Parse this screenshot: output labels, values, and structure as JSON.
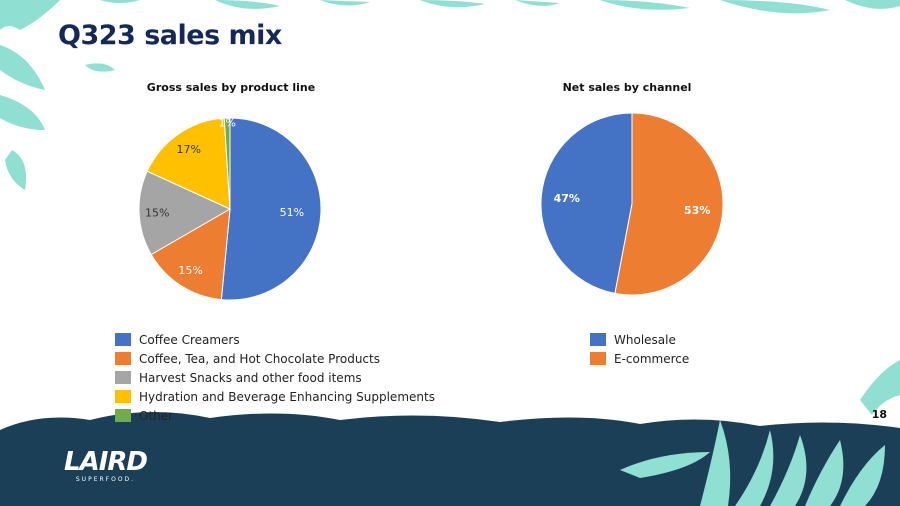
{
  "slide": {
    "title": "Q323 sales mix",
    "page_number": "18"
  },
  "brand": {
    "name": "LAIRD",
    "tagline": "SUPERFOOD."
  },
  "colors": {
    "title": "#14285a",
    "blue": "#4472c4",
    "orange": "#ed7d31",
    "gray": "#a5a5a5",
    "yellow": "#ffc000",
    "green": "#70ad47",
    "navy_band": "#1c3f58",
    "leaf": "#8fe0d2"
  },
  "chart_data": [
    {
      "type": "pie",
      "title": "Gross sales by product line",
      "slices": [
        {
          "label": "Coffee Creamers",
          "value": 51,
          "display": "51%",
          "color": "#4472c4",
          "label_color": "#ffffff"
        },
        {
          "label": "Coffee, Tea, and Hot Chocolate Products",
          "value": 15,
          "display": "15%",
          "color": "#ed7d31",
          "label_color": "#ffffff"
        },
        {
          "label": "Harvest Snacks and other food items",
          "value": 15,
          "display": "15%",
          "color": "#a5a5a5",
          "label_color": "#333333"
        },
        {
          "label": "Hydration and Beverage Enhancing Supplements",
          "value": 17,
          "display": "17%",
          "color": "#ffc000",
          "label_color": "#333333"
        },
        {
          "label": "Other",
          "value": 1,
          "display": "1%",
          "color": "#70ad47",
          "label_color": "#ffffff"
        }
      ],
      "start_angle_deg": 0,
      "direction": "clockwise",
      "legend_position": "bottom"
    },
    {
      "type": "pie",
      "title": "Net sales by channel",
      "slices": [
        {
          "label": "Wholesale",
          "value": 47,
          "display": "47%",
          "color": "#4472c4",
          "label_color": "#ffffff"
        },
        {
          "label": "E-commerce",
          "value": 53,
          "display": "53%",
          "color": "#ed7d31",
          "label_color": "#ffffff"
        }
      ],
      "start_angle_deg": 0,
      "direction": "counterclockwise",
      "legend_position": "bottom"
    }
  ]
}
